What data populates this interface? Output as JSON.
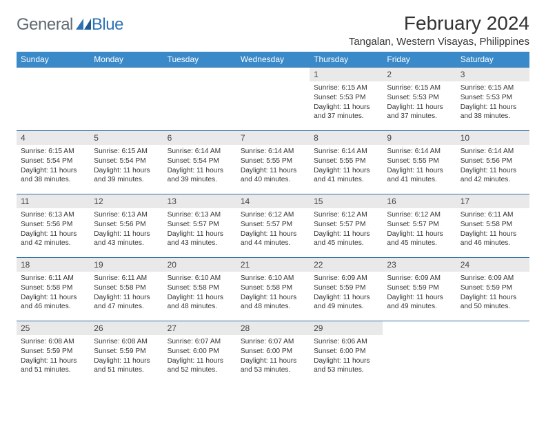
{
  "brand": {
    "word1": "General",
    "word2": "Blue"
  },
  "header": {
    "month_title": "February 2024",
    "location": "Tangalan, Western Visayas, Philippines"
  },
  "colors": {
    "header_bg": "#3a8ac9",
    "header_text": "#ffffff",
    "daynum_bg": "#e9e9e9",
    "row_border": "#2e6da4",
    "logo_gray": "#5f6a72",
    "logo_blue": "#2d72b5"
  },
  "weekdays": [
    "Sunday",
    "Monday",
    "Tuesday",
    "Wednesday",
    "Thursday",
    "Friday",
    "Saturday"
  ],
  "weeks": [
    [
      {
        "empty": true
      },
      {
        "empty": true
      },
      {
        "empty": true
      },
      {
        "empty": true
      },
      {
        "num": "1",
        "sunrise": "Sunrise: 6:15 AM",
        "sunset": "Sunset: 5:53 PM",
        "day1": "Daylight: 11 hours",
        "day2": "and 37 minutes."
      },
      {
        "num": "2",
        "sunrise": "Sunrise: 6:15 AM",
        "sunset": "Sunset: 5:53 PM",
        "day1": "Daylight: 11 hours",
        "day2": "and 37 minutes."
      },
      {
        "num": "3",
        "sunrise": "Sunrise: 6:15 AM",
        "sunset": "Sunset: 5:53 PM",
        "day1": "Daylight: 11 hours",
        "day2": "and 38 minutes."
      }
    ],
    [
      {
        "num": "4",
        "sunrise": "Sunrise: 6:15 AM",
        "sunset": "Sunset: 5:54 PM",
        "day1": "Daylight: 11 hours",
        "day2": "and 38 minutes."
      },
      {
        "num": "5",
        "sunrise": "Sunrise: 6:15 AM",
        "sunset": "Sunset: 5:54 PM",
        "day1": "Daylight: 11 hours",
        "day2": "and 39 minutes."
      },
      {
        "num": "6",
        "sunrise": "Sunrise: 6:14 AM",
        "sunset": "Sunset: 5:54 PM",
        "day1": "Daylight: 11 hours",
        "day2": "and 39 minutes."
      },
      {
        "num": "7",
        "sunrise": "Sunrise: 6:14 AM",
        "sunset": "Sunset: 5:55 PM",
        "day1": "Daylight: 11 hours",
        "day2": "and 40 minutes."
      },
      {
        "num": "8",
        "sunrise": "Sunrise: 6:14 AM",
        "sunset": "Sunset: 5:55 PM",
        "day1": "Daylight: 11 hours",
        "day2": "and 41 minutes."
      },
      {
        "num": "9",
        "sunrise": "Sunrise: 6:14 AM",
        "sunset": "Sunset: 5:55 PM",
        "day1": "Daylight: 11 hours",
        "day2": "and 41 minutes."
      },
      {
        "num": "10",
        "sunrise": "Sunrise: 6:14 AM",
        "sunset": "Sunset: 5:56 PM",
        "day1": "Daylight: 11 hours",
        "day2": "and 42 minutes."
      }
    ],
    [
      {
        "num": "11",
        "sunrise": "Sunrise: 6:13 AM",
        "sunset": "Sunset: 5:56 PM",
        "day1": "Daylight: 11 hours",
        "day2": "and 42 minutes."
      },
      {
        "num": "12",
        "sunrise": "Sunrise: 6:13 AM",
        "sunset": "Sunset: 5:56 PM",
        "day1": "Daylight: 11 hours",
        "day2": "and 43 minutes."
      },
      {
        "num": "13",
        "sunrise": "Sunrise: 6:13 AM",
        "sunset": "Sunset: 5:57 PM",
        "day1": "Daylight: 11 hours",
        "day2": "and 43 minutes."
      },
      {
        "num": "14",
        "sunrise": "Sunrise: 6:12 AM",
        "sunset": "Sunset: 5:57 PM",
        "day1": "Daylight: 11 hours",
        "day2": "and 44 minutes."
      },
      {
        "num": "15",
        "sunrise": "Sunrise: 6:12 AM",
        "sunset": "Sunset: 5:57 PM",
        "day1": "Daylight: 11 hours",
        "day2": "and 45 minutes."
      },
      {
        "num": "16",
        "sunrise": "Sunrise: 6:12 AM",
        "sunset": "Sunset: 5:57 PM",
        "day1": "Daylight: 11 hours",
        "day2": "and 45 minutes."
      },
      {
        "num": "17",
        "sunrise": "Sunrise: 6:11 AM",
        "sunset": "Sunset: 5:58 PM",
        "day1": "Daylight: 11 hours",
        "day2": "and 46 minutes."
      }
    ],
    [
      {
        "num": "18",
        "sunrise": "Sunrise: 6:11 AM",
        "sunset": "Sunset: 5:58 PM",
        "day1": "Daylight: 11 hours",
        "day2": "and 46 minutes."
      },
      {
        "num": "19",
        "sunrise": "Sunrise: 6:11 AM",
        "sunset": "Sunset: 5:58 PM",
        "day1": "Daylight: 11 hours",
        "day2": "and 47 minutes."
      },
      {
        "num": "20",
        "sunrise": "Sunrise: 6:10 AM",
        "sunset": "Sunset: 5:58 PM",
        "day1": "Daylight: 11 hours",
        "day2": "and 48 minutes."
      },
      {
        "num": "21",
        "sunrise": "Sunrise: 6:10 AM",
        "sunset": "Sunset: 5:58 PM",
        "day1": "Daylight: 11 hours",
        "day2": "and 48 minutes."
      },
      {
        "num": "22",
        "sunrise": "Sunrise: 6:09 AM",
        "sunset": "Sunset: 5:59 PM",
        "day1": "Daylight: 11 hours",
        "day2": "and 49 minutes."
      },
      {
        "num": "23",
        "sunrise": "Sunrise: 6:09 AM",
        "sunset": "Sunset: 5:59 PM",
        "day1": "Daylight: 11 hours",
        "day2": "and 49 minutes."
      },
      {
        "num": "24",
        "sunrise": "Sunrise: 6:09 AM",
        "sunset": "Sunset: 5:59 PM",
        "day1": "Daylight: 11 hours",
        "day2": "and 50 minutes."
      }
    ],
    [
      {
        "num": "25",
        "sunrise": "Sunrise: 6:08 AM",
        "sunset": "Sunset: 5:59 PM",
        "day1": "Daylight: 11 hours",
        "day2": "and 51 minutes."
      },
      {
        "num": "26",
        "sunrise": "Sunrise: 6:08 AM",
        "sunset": "Sunset: 5:59 PM",
        "day1": "Daylight: 11 hours",
        "day2": "and 51 minutes."
      },
      {
        "num": "27",
        "sunrise": "Sunrise: 6:07 AM",
        "sunset": "Sunset: 6:00 PM",
        "day1": "Daylight: 11 hours",
        "day2": "and 52 minutes."
      },
      {
        "num": "28",
        "sunrise": "Sunrise: 6:07 AM",
        "sunset": "Sunset: 6:00 PM",
        "day1": "Daylight: 11 hours",
        "day2": "and 53 minutes."
      },
      {
        "num": "29",
        "sunrise": "Sunrise: 6:06 AM",
        "sunset": "Sunset: 6:00 PM",
        "day1": "Daylight: 11 hours",
        "day2": "and 53 minutes."
      },
      {
        "empty": true
      },
      {
        "empty": true
      }
    ]
  ]
}
